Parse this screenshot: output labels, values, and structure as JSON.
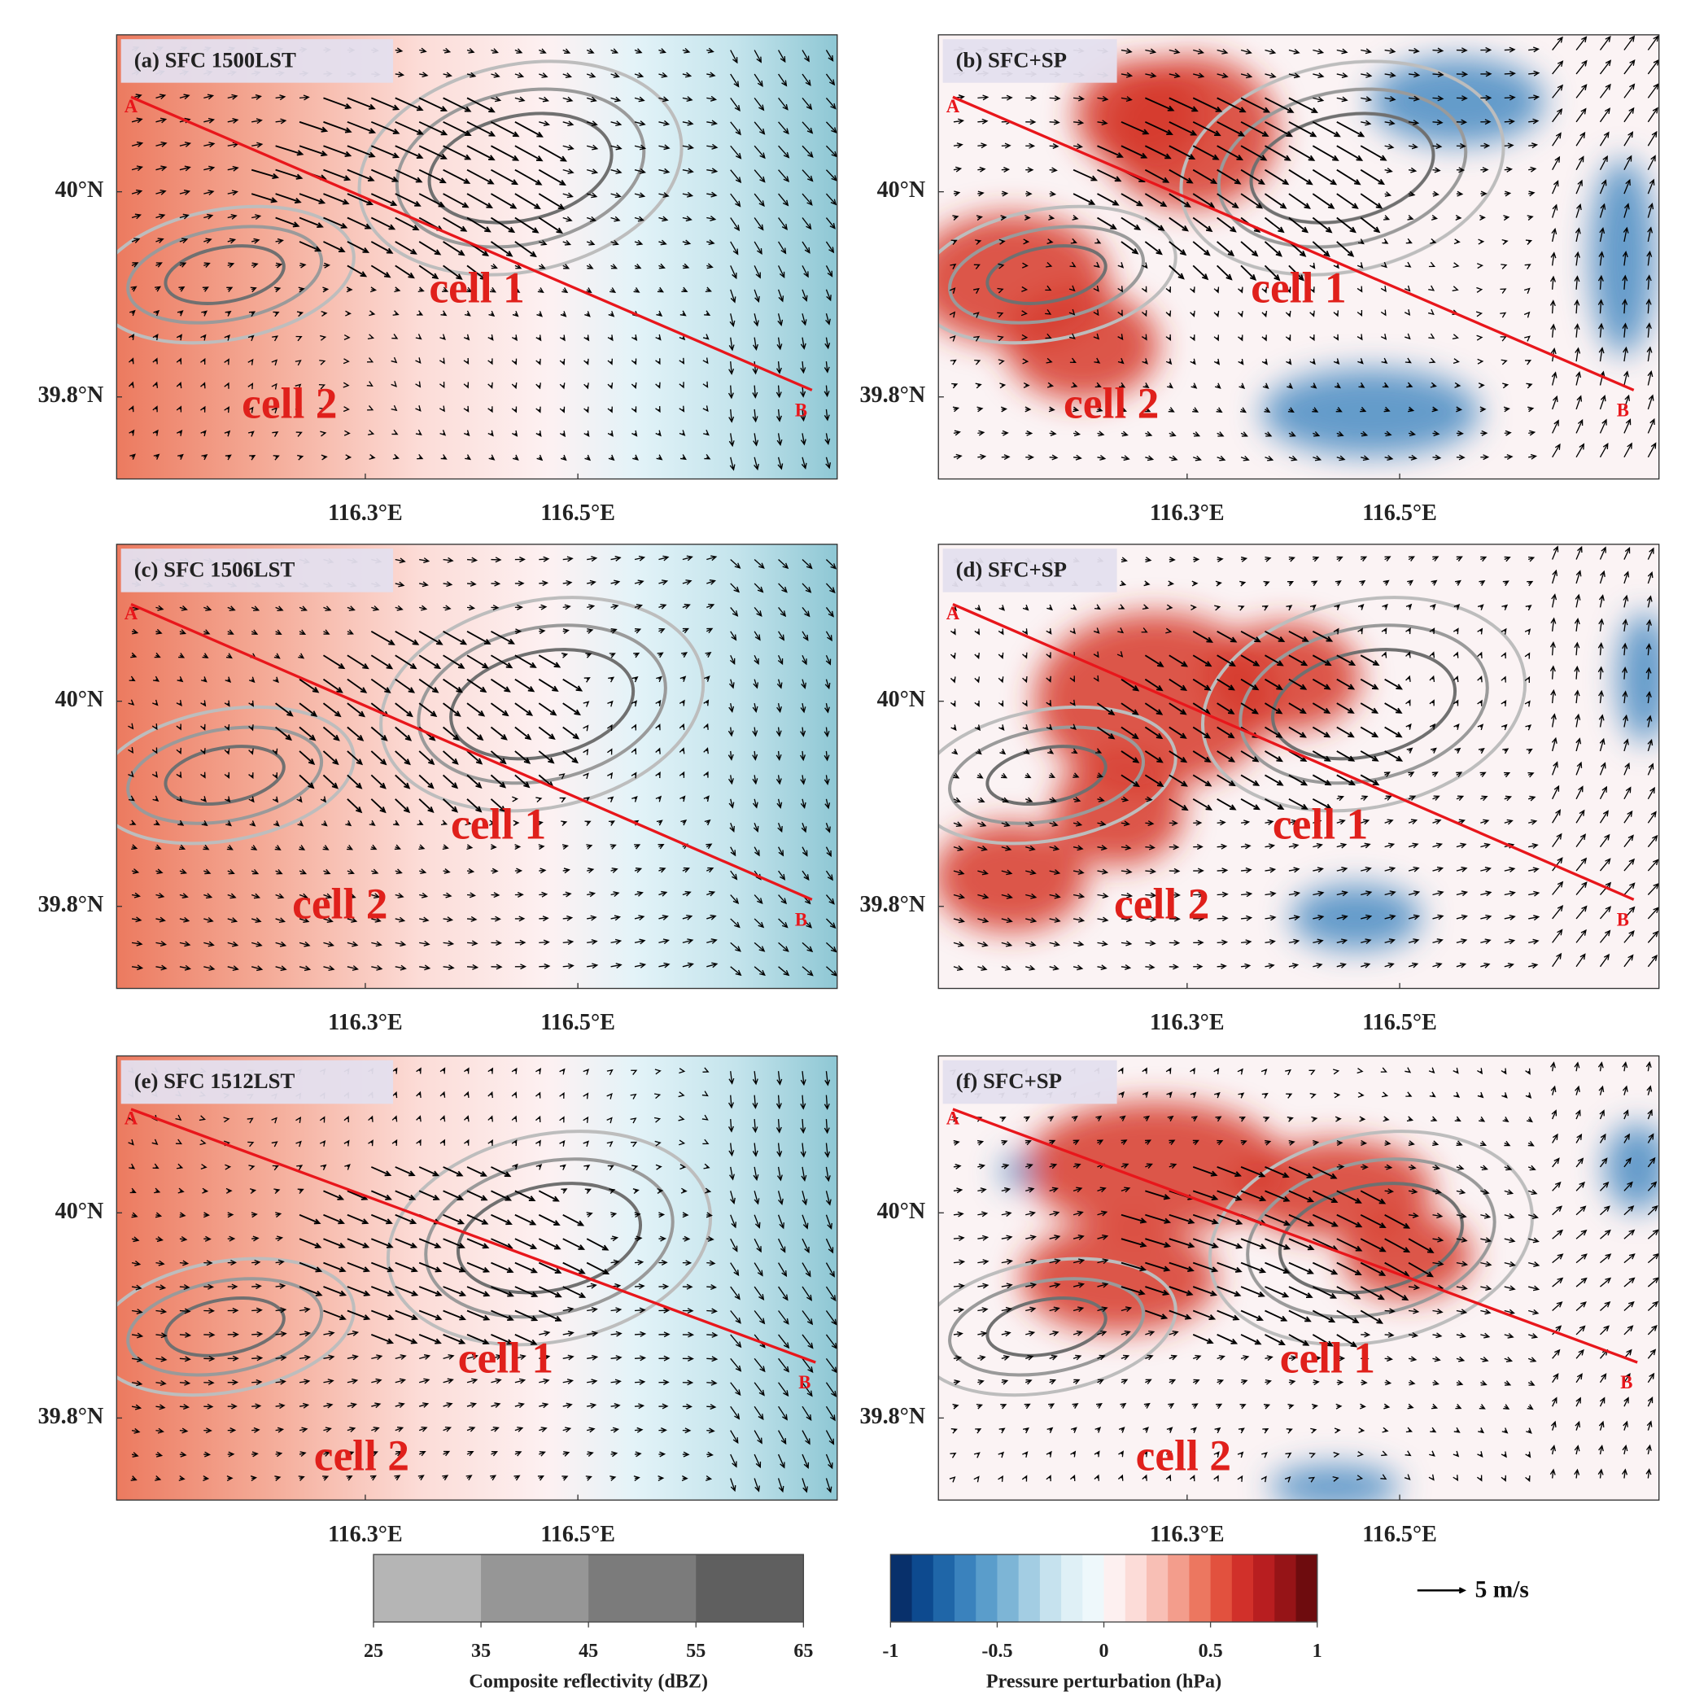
{
  "panels": [
    {
      "label": "(a) SFC 1500LST",
      "annotations": [
        "cell 1",
        "cell 2"
      ],
      "section_ends": [
        "A",
        "B"
      ]
    },
    {
      "label": "(b) SFC+SP",
      "annotations": [
        "cell 1",
        "cell 2"
      ],
      "section_ends": [
        "A",
        "B"
      ]
    },
    {
      "label": "(c) SFC 1506LST",
      "annotations": [
        "cell 1",
        "cell 2"
      ],
      "section_ends": [
        "A",
        "B"
      ]
    },
    {
      "label": "(d) SFC+SP",
      "annotations": [
        "cell 1",
        "cell 2"
      ],
      "section_ends": [
        "A",
        "B"
      ]
    },
    {
      "label": "(e) SFC 1512LST",
      "annotations": [
        "cell 1",
        "cell 2"
      ],
      "section_ends": [
        "A",
        "B"
      ]
    },
    {
      "label": "(f) SFC+SP",
      "annotations": [
        "cell 1",
        "cell 2"
      ],
      "section_ends": [
        "A",
        "B"
      ]
    }
  ],
  "lon_range": [
    116.066,
    116.744
  ],
  "lat_range": [
    39.72,
    40.153
  ],
  "longitude_ticks": [
    {
      "value": 116.3,
      "label": "116.3°E"
    },
    {
      "value": 116.5,
      "label": "116.5°E"
    }
  ],
  "latitude_ticks": [
    {
      "value": 40,
      "label": "40°N"
    },
    {
      "value": 39.8,
      "label": "39.8°N"
    }
  ],
  "reflectivity_colorbar": {
    "title": "Composite reflectivity (dBZ)",
    "ticks": [
      25,
      35,
      45,
      55,
      65
    ],
    "colors": [
      "#b5b5b5",
      "#969696",
      "#7b7b7b",
      "#5f5f5f"
    ]
  },
  "pressure_colorbar": {
    "title": "Pressure perturbation (hPa)",
    "ticks": [
      -1,
      -0.5,
      0,
      0.5,
      1
    ],
    "colors": [
      "#08306b",
      "#0d4a8f",
      "#1f66a8",
      "#3a82bd",
      "#5a9dcb",
      "#7db5d6",
      "#a3cde3",
      "#c6e2ee",
      "#dff0f6",
      "#eef8fb",
      "#fdf0f0",
      "#fcdcd8",
      "#f8bfb5",
      "#f39d8c",
      "#ec7760",
      "#e2513e",
      "#d1302a",
      "#b81e20",
      "#961417",
      "#6e0c0e"
    ]
  },
  "wind_reference": {
    "value": 5,
    "label": "5 m/s"
  }
}
